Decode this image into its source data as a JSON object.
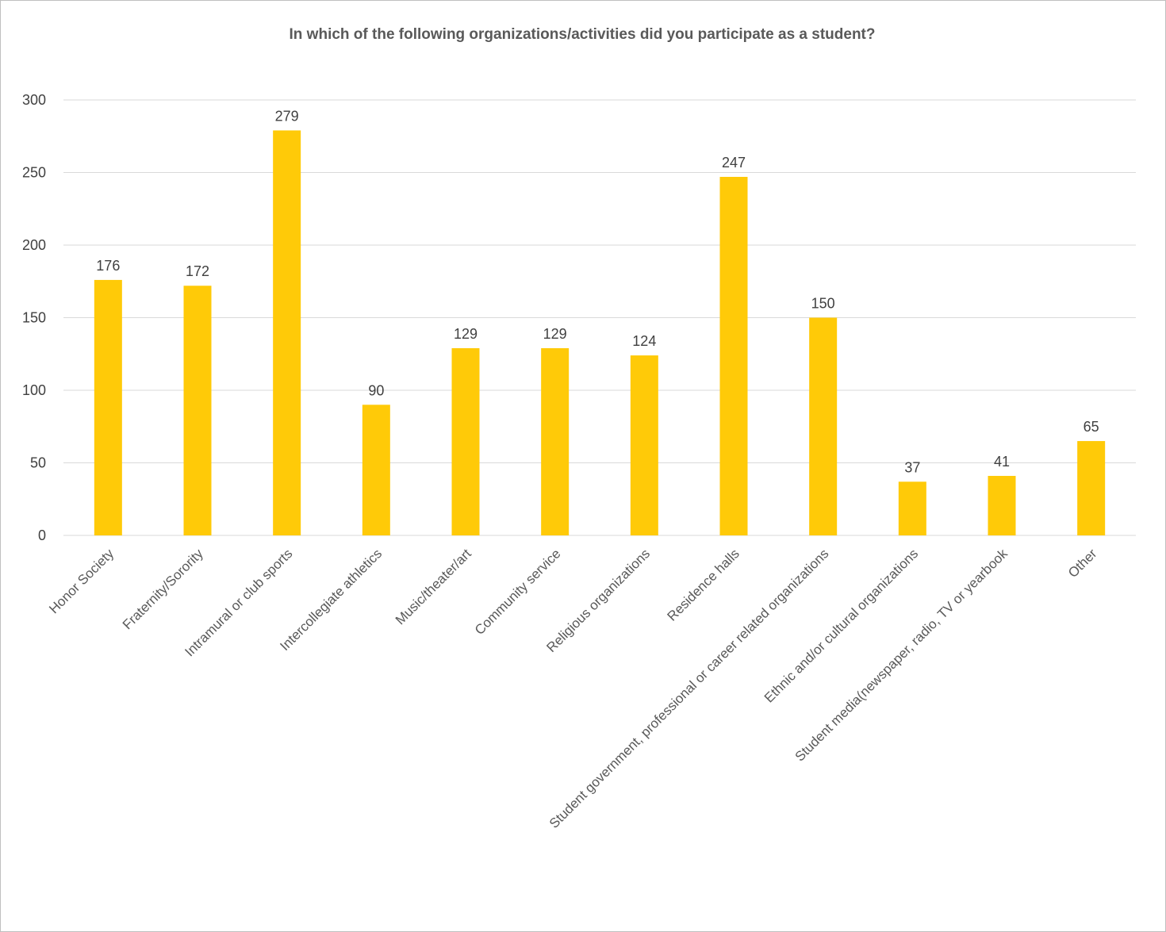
{
  "chart_data": {
    "type": "bar",
    "title": "In which of the following organizations/activities did you participate as a student?",
    "categories": [
      "Honor Society",
      "Fraternity/Sorority",
      "Intramural or club sports",
      "Intercollegiate athletics",
      "Music/theater/art",
      "Community service",
      "Religious organizations",
      "Residence halls",
      "Student government, professional or career related organizations",
      "Ethnic and/or cultural organizations",
      "Student media(newspaper, radio, TV or yearbook",
      "Other"
    ],
    "values": [
      176,
      172,
      279,
      90,
      129,
      129,
      124,
      247,
      150,
      37,
      41,
      65
    ],
    "ylim": [
      0,
      300
    ],
    "yticks": [
      0,
      50,
      100,
      150,
      200,
      250,
      300
    ],
    "xlabel": "",
    "ylabel": "",
    "grid": true,
    "legend": "none",
    "bar_color": "#FFCA08",
    "grid_color": "#d9d9d9"
  }
}
